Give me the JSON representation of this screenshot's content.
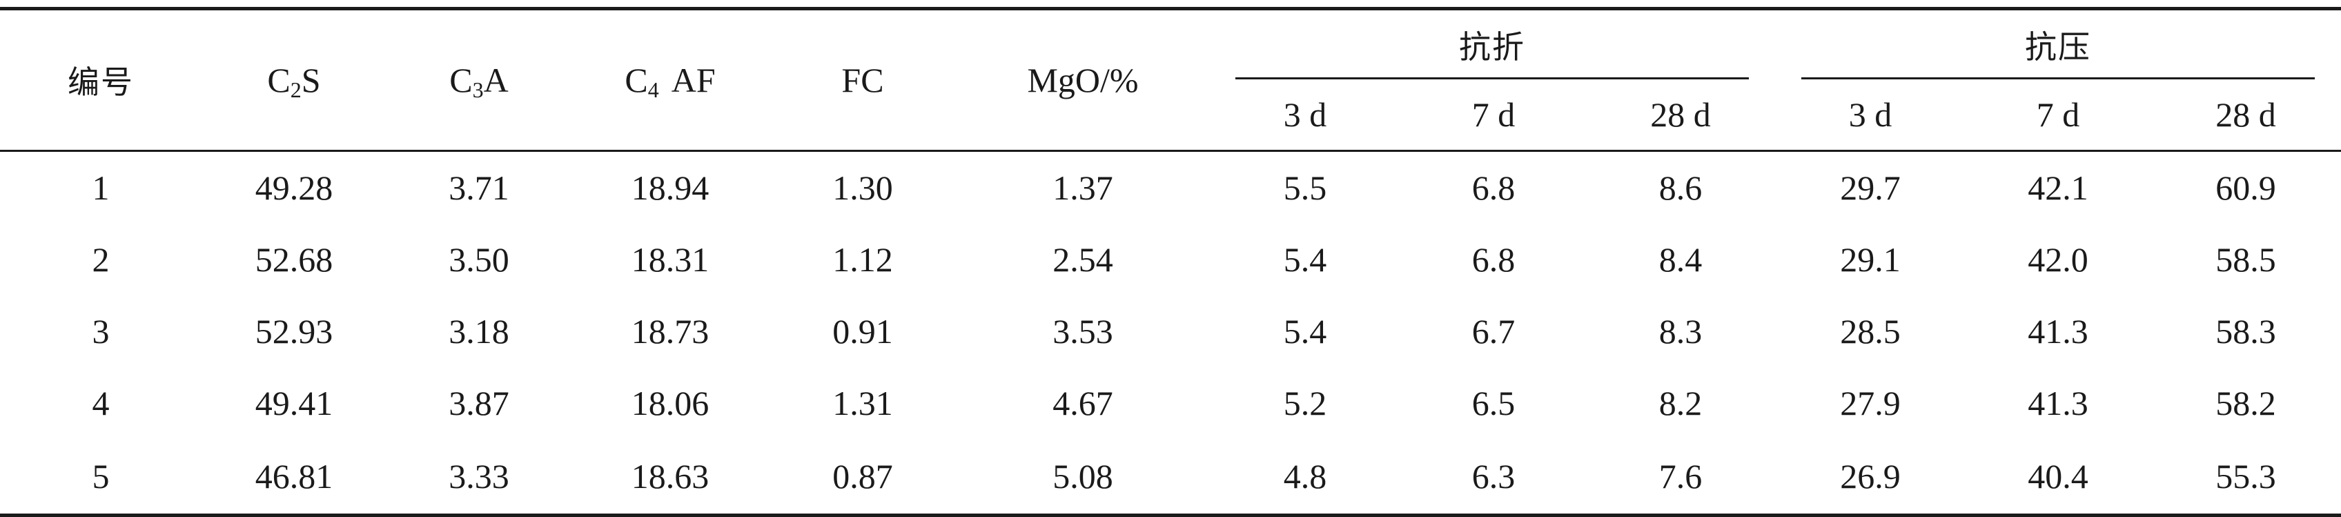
{
  "table": {
    "header": {
      "id_label": "编号",
      "c2s": {
        "base": "C",
        "sub": "2",
        "tail": "S"
      },
      "c3a": {
        "base": "C",
        "sub": "3",
        "tail": "A"
      },
      "c4af": {
        "base": "C",
        "sub": "4",
        "tail": "AF"
      },
      "fc": "FC",
      "mgo": "MgO/%",
      "flexural_group": "抗折",
      "compressive_group": "抗压",
      "flexural_ages": [
        "3 d",
        "7 d",
        "28 d"
      ],
      "compressive_ages": [
        "3 d",
        "7 d",
        "28 d"
      ]
    },
    "rows": [
      {
        "id": "1",
        "c2s": "49.28",
        "c3a": "3.71",
        "c4af": "18.94",
        "fc": "1.30",
        "mgo": "1.37",
        "flex_3d": "5.5",
        "flex_7d": "6.8",
        "flex_28d": "8.6",
        "comp_3d": "29.7",
        "comp_7d": "42.1",
        "comp_28d": "60.9"
      },
      {
        "id": "2",
        "c2s": "52.68",
        "c3a": "3.50",
        "c4af": "18.31",
        "fc": "1.12",
        "mgo": "2.54",
        "flex_3d": "5.4",
        "flex_7d": "6.8",
        "flex_28d": "8.4",
        "comp_3d": "29.1",
        "comp_7d": "42.0",
        "comp_28d": "58.5"
      },
      {
        "id": "3",
        "c2s": "52.93",
        "c3a": "3.18",
        "c4af": "18.73",
        "fc": "0.91",
        "mgo": "3.53",
        "flex_3d": "5.4",
        "flex_7d": "6.7",
        "flex_28d": "8.3",
        "comp_3d": "28.5",
        "comp_7d": "41.3",
        "comp_28d": "58.3"
      },
      {
        "id": "4",
        "c2s": "49.41",
        "c3a": "3.87",
        "c4af": "18.06",
        "fc": "1.31",
        "mgo": "4.67",
        "flex_3d": "5.2",
        "flex_7d": "6.5",
        "flex_28d": "8.2",
        "comp_3d": "27.9",
        "comp_7d": "41.3",
        "comp_28d": "58.2"
      },
      {
        "id": "5",
        "c2s": "46.81",
        "c3a": "3.33",
        "c4af": "18.63",
        "fc": "0.87",
        "mgo": "5.08",
        "flex_3d": "4.8",
        "flex_7d": "6.3",
        "flex_28d": "7.6",
        "comp_3d": "26.9",
        "comp_7d": "40.4",
        "comp_28d": "55.3"
      }
    ]
  }
}
